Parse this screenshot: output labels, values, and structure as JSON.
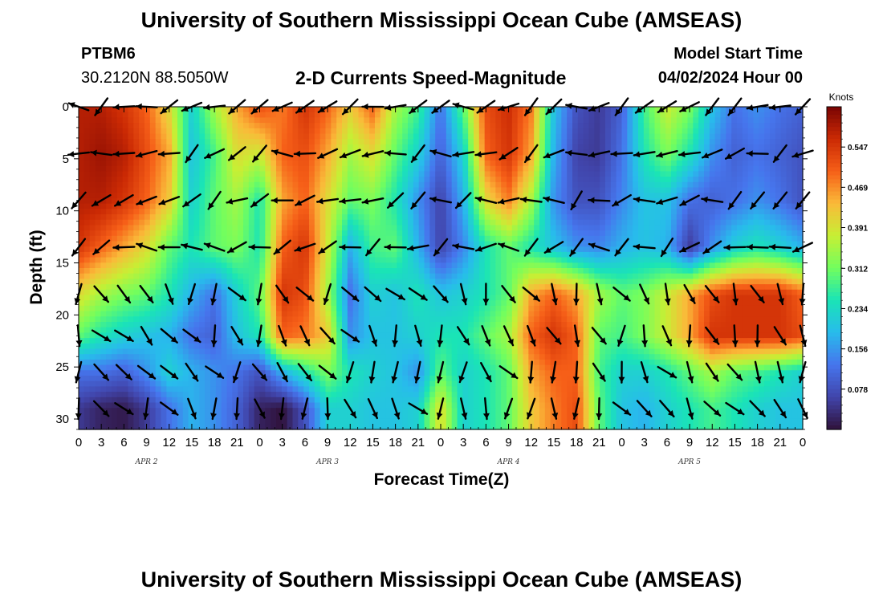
{
  "header": {
    "title": "University of Southern Mississippi Ocean Cube (AMSEAS)",
    "station_id": "PTBM6",
    "coords": "30.2120N  88.5050W",
    "model_start_label": "Model Start Time",
    "model_start_value": "04/02/2024 Hour 00"
  },
  "footer": {
    "title": "University of Southern Mississippi Ocean Cube (AMSEAS)"
  },
  "chart_data": {
    "type": "heatmap",
    "title": "2-D Currents Speed-Magnitude",
    "xlabel": "Forecast Time(Z)",
    "ylabel": "Depth (ft)",
    "x_tick_labels": [
      "0",
      "3",
      "6",
      "9",
      "12",
      "15",
      "18",
      "21",
      "0",
      "3",
      "6",
      "9",
      "12",
      "15",
      "18",
      "21",
      "0",
      "3",
      "6",
      "9",
      "12",
      "15",
      "18",
      "21",
      "0",
      "3",
      "6",
      "9",
      "12",
      "15",
      "18",
      "21",
      "0"
    ],
    "x_range_hours": [
      0,
      96
    ],
    "y_ticks": [
      0,
      5,
      10,
      15,
      20,
      25,
      30
    ],
    "y_range": [
      0,
      31
    ],
    "y_inverted": true,
    "date_labels": [
      {
        "text": "APR 2",
        "hour": 9
      },
      {
        "text": "APR 3",
        "hour": 33
      },
      {
        "text": "APR 4",
        "hour": 57
      },
      {
        "text": "APR 5",
        "hour": 81
      }
    ],
    "colorbar": {
      "label": "Knots",
      "ticks": [
        "0.547",
        "0.469",
        "0.391",
        "0.312",
        "0.234",
        "0.156",
        "0.078"
      ],
      "range": [
        0,
        0.625
      ]
    },
    "columns_hours": [
      0,
      3,
      6,
      9,
      12,
      15,
      18,
      21,
      24,
      27,
      30,
      33,
      36,
      39,
      42,
      45,
      48,
      51,
      54,
      57,
      60,
      63,
      66,
      69,
      72,
      75,
      78,
      81,
      84,
      87,
      90,
      93,
      96
    ],
    "rows_depth_ft": [
      0,
      4.5,
      9,
      13.5,
      18,
      22,
      25.5,
      29
    ],
    "speed": [
      [
        0.58,
        0.58,
        0.55,
        0.5,
        0.4,
        0.22,
        0.35,
        0.45,
        0.52,
        0.48,
        0.55,
        0.5,
        0.42,
        0.5,
        0.35,
        0.28,
        0.12,
        0.3,
        0.52,
        0.56,
        0.48,
        0.2,
        0.08,
        0.05,
        0.1,
        0.28,
        0.38,
        0.32,
        0.2,
        0.12,
        0.15,
        0.12,
        0.1
      ],
      [
        0.58,
        0.6,
        0.58,
        0.52,
        0.45,
        0.2,
        0.28,
        0.4,
        0.38,
        0.5,
        0.52,
        0.45,
        0.35,
        0.4,
        0.3,
        0.22,
        0.1,
        0.22,
        0.5,
        0.55,
        0.45,
        0.18,
        0.06,
        0.05,
        0.12,
        0.25,
        0.32,
        0.25,
        0.15,
        0.1,
        0.12,
        0.1,
        0.08
      ],
      [
        0.58,
        0.58,
        0.55,
        0.5,
        0.42,
        0.22,
        0.3,
        0.35,
        0.25,
        0.45,
        0.5,
        0.4,
        0.3,
        0.32,
        0.25,
        0.15,
        0.06,
        0.18,
        0.4,
        0.48,
        0.35,
        0.15,
        0.08,
        0.08,
        0.14,
        0.2,
        0.2,
        0.12,
        0.1,
        0.12,
        0.15,
        0.12,
        0.08
      ],
      [
        0.55,
        0.5,
        0.45,
        0.4,
        0.3,
        0.25,
        0.3,
        0.32,
        0.25,
        0.5,
        0.55,
        0.38,
        0.18,
        0.28,
        0.3,
        0.18,
        0.06,
        0.14,
        0.25,
        0.3,
        0.25,
        0.2,
        0.15,
        0.14,
        0.18,
        0.2,
        0.18,
        0.05,
        0.15,
        0.22,
        0.25,
        0.22,
        0.18
      ],
      [
        0.4,
        0.35,
        0.32,
        0.3,
        0.25,
        0.18,
        0.12,
        0.22,
        0.3,
        0.55,
        0.52,
        0.35,
        0.12,
        0.22,
        0.2,
        0.25,
        0.2,
        0.22,
        0.25,
        0.3,
        0.45,
        0.5,
        0.45,
        0.35,
        0.3,
        0.32,
        0.38,
        0.45,
        0.52,
        0.55,
        0.55,
        0.55,
        0.5
      ],
      [
        0.3,
        0.25,
        0.22,
        0.2,
        0.18,
        0.12,
        0.1,
        0.2,
        0.25,
        0.5,
        0.48,
        0.42,
        0.15,
        0.2,
        0.2,
        0.22,
        0.25,
        0.25,
        0.3,
        0.35,
        0.5,
        0.55,
        0.5,
        0.3,
        0.28,
        0.32,
        0.38,
        0.45,
        0.55,
        0.55,
        0.55,
        0.55,
        0.52
      ],
      [
        0.12,
        0.12,
        0.1,
        0.15,
        0.22,
        0.18,
        0.15,
        0.12,
        0.08,
        0.18,
        0.25,
        0.32,
        0.25,
        0.22,
        0.2,
        0.15,
        0.3,
        0.22,
        0.25,
        0.3,
        0.45,
        0.5,
        0.5,
        0.28,
        0.22,
        0.22,
        0.25,
        0.3,
        0.35,
        0.3,
        0.28,
        0.25,
        0.22
      ],
      [
        0.05,
        0.02,
        0.01,
        0.05,
        0.12,
        0.18,
        0.15,
        0.1,
        0.02,
        0.0,
        0.08,
        0.22,
        0.22,
        0.2,
        0.2,
        0.22,
        0.4,
        0.22,
        0.25,
        0.3,
        0.42,
        0.48,
        0.52,
        0.3,
        0.2,
        0.18,
        0.22,
        0.25,
        0.28,
        0.25,
        0.22,
        0.2,
        0.2
      ]
    ]
  }
}
